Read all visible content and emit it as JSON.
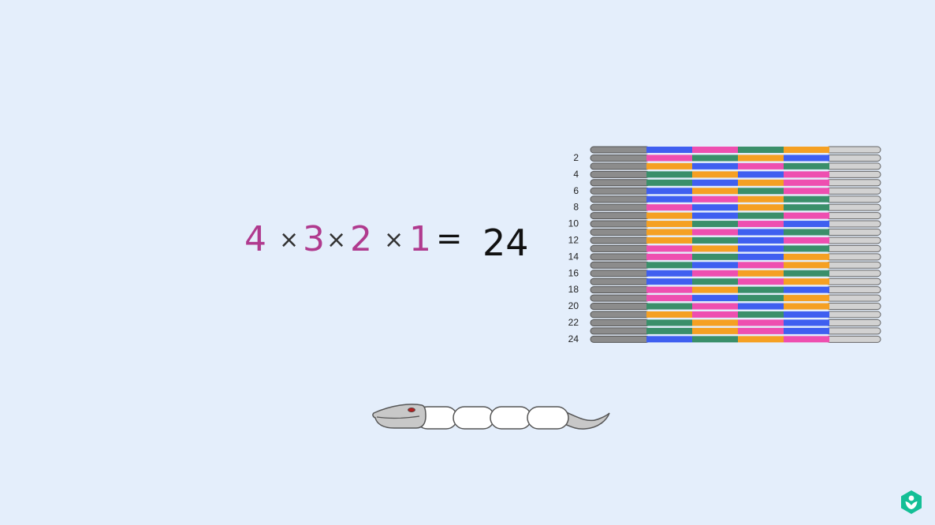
{
  "equation": {
    "factors": [
      "4",
      "3",
      "2",
      "1"
    ],
    "operator": "×",
    "equals": "=",
    "result": "24",
    "factor_color": "#b03a8e",
    "op_color": "#333333",
    "result_color": "#111111"
  },
  "chart_data": {
    "type": "table",
    "row_tick_labels": [
      "2",
      "4",
      "6",
      "8",
      "10",
      "12",
      "14",
      "16",
      "18",
      "20",
      "22",
      "24"
    ],
    "color_key": {
      "B": "#3f5ff0",
      "P": "#ee4fb0",
      "G": "#3a8f6a",
      "O": "#f5a023"
    },
    "rows": [
      [
        "B",
        "P",
        "G",
        "O"
      ],
      [
        "P",
        "G",
        "O",
        "B"
      ],
      [
        "O",
        "B",
        "P",
        "G"
      ],
      [
        "G",
        "O",
        "B",
        "P"
      ],
      [
        "G",
        "B",
        "O",
        "P"
      ],
      [
        "B",
        "O",
        "G",
        "P"
      ],
      [
        "B",
        "P",
        "O",
        "G"
      ],
      [
        "P",
        "B",
        "O",
        "G"
      ],
      [
        "O",
        "B",
        "G",
        "P"
      ],
      [
        "O",
        "G",
        "P",
        "B"
      ],
      [
        "O",
        "P",
        "B",
        "G"
      ],
      [
        "O",
        "G",
        "B",
        "P"
      ],
      [
        "P",
        "O",
        "B",
        "G"
      ],
      [
        "P",
        "G",
        "B",
        "O"
      ],
      [
        "G",
        "B",
        "P",
        "O"
      ],
      [
        "B",
        "P",
        "O",
        "G"
      ],
      [
        "B",
        "G",
        "P",
        "O"
      ],
      [
        "P",
        "O",
        "G",
        "B"
      ],
      [
        "P",
        "B",
        "G",
        "O"
      ],
      [
        "G",
        "P",
        "B",
        "O"
      ],
      [
        "O",
        "P",
        "G",
        "B"
      ],
      [
        "G",
        "O",
        "P",
        "B"
      ],
      [
        "G",
        "O",
        "P",
        "B"
      ],
      [
        "B",
        "G",
        "O",
        "P"
      ]
    ],
    "endcap_color": "#8c8c8c",
    "tail_color": "#d2d2d2"
  },
  "snake": {
    "head_color": "#c8c8c8",
    "body_color": "#ffffff",
    "eye_color": "#b02020",
    "body_segments": 4
  },
  "logo": {
    "icon": "khan-academy-logo-icon",
    "color": "#14bf96"
  }
}
